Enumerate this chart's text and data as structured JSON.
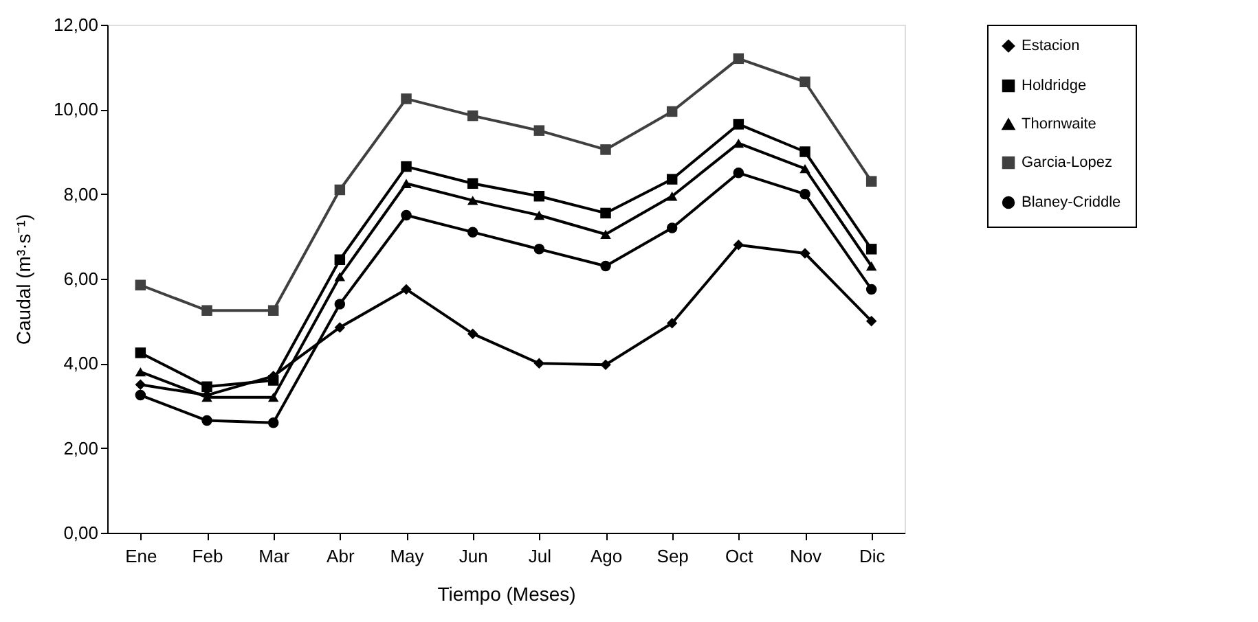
{
  "chart_data": {
    "type": "line",
    "xlabel": "Tiempo (Meses)",
    "ylabel": "Caudal (m³·s⁻¹)",
    "categories": [
      "Ene",
      "Feb",
      "Mar",
      "Abr",
      "May",
      "Jun",
      "Jul",
      "Ago",
      "Sep",
      "Oct",
      "Nov",
      "Dic"
    ],
    "series": [
      {
        "name": "Estacion",
        "color": "#000000",
        "marker": "diamond",
        "values": [
          3.5,
          3.25,
          3.7,
          4.85,
          5.75,
          4.7,
          4.0,
          3.97,
          4.95,
          6.8,
          6.6,
          5.0
        ]
      },
      {
        "name": "Holdridge",
        "color": "#000000",
        "marker": "square",
        "values": [
          4.25,
          3.45,
          3.6,
          6.45,
          8.65,
          8.25,
          7.95,
          7.55,
          8.35,
          9.65,
          9.0,
          6.7
        ]
      },
      {
        "name": "Thornwaite",
        "color": "#000000",
        "marker": "triangle",
        "values": [
          3.8,
          3.2,
          3.2,
          6.05,
          8.25,
          7.85,
          7.5,
          7.05,
          7.95,
          9.2,
          8.6,
          6.3
        ]
      },
      {
        "name": "Garcia-Lopez",
        "color": "#404040",
        "marker": "square",
        "values": [
          5.85,
          5.25,
          5.25,
          8.1,
          10.25,
          9.85,
          9.5,
          9.05,
          9.95,
          11.2,
          10.65,
          8.3
        ]
      },
      {
        "name": "Blaney-Criddle",
        "color": "#000000",
        "marker": "circle",
        "values": [
          3.25,
          2.65,
          2.6,
          5.4,
          7.5,
          7.1,
          6.7,
          6.3,
          7.2,
          8.5,
          8.0,
          5.75
        ]
      }
    ],
    "ylim": [
      0,
      12
    ],
    "yticks": [
      {
        "value": 0,
        "label": "0,00"
      },
      {
        "value": 2,
        "label": "2,00"
      },
      {
        "value": 4,
        "label": "4,00"
      },
      {
        "value": 6,
        "label": "6,00"
      },
      {
        "value": 8,
        "label": "8,00"
      },
      {
        "value": 10,
        "label": "10,00"
      },
      {
        "value": 12,
        "label": "12,00"
      }
    ],
    "grid": false,
    "legend": "right",
    "line_style": "solid"
  }
}
